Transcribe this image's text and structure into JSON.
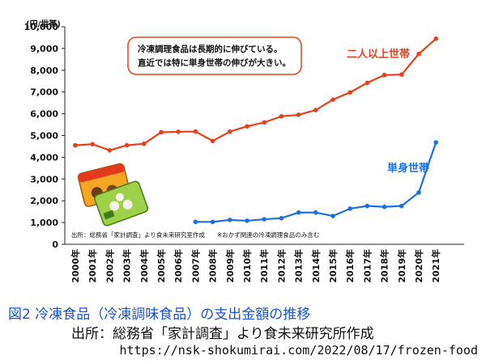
{
  "chart_data": {
    "type": "line",
    "unit_label": "(円/世帯)",
    "categories": [
      "2000年",
      "2001年",
      "2002年",
      "2003年",
      "2004年",
      "2005年",
      "2006年",
      "2007年",
      "2008年",
      "2009年",
      "2010年",
      "2011年",
      "2012年",
      "2013年",
      "2014年",
      "2015年",
      "2016年",
      "2017年",
      "2018年",
      "2019年",
      "2020年",
      "2021年"
    ],
    "series": [
      {
        "name": "二人以上世帯",
        "color": "#e8401c",
        "values": [
          4550,
          4600,
          4320,
          4550,
          4620,
          5150,
          5170,
          5180,
          4750,
          5180,
          5420,
          5600,
          5880,
          5950,
          6170,
          6650,
          6980,
          7420,
          7780,
          7800,
          8750,
          9450
        ]
      },
      {
        "name": "単身世帯",
        "color": "#1e6fe0",
        "values": [
          null,
          null,
          null,
          null,
          null,
          null,
          null,
          1030,
          1030,
          1120,
          1080,
          1150,
          1200,
          1460,
          1460,
          1300,
          1640,
          1760,
          1720,
          1760,
          2380,
          4680
        ]
      }
    ],
    "y_ticks": [
      "0",
      "1,000",
      "2,000",
      "3,000",
      "4,000",
      "5,000",
      "6,000",
      "7,000",
      "8,000",
      "9,000",
      "10,000"
    ],
    "ylim": [
      0,
      10000
    ],
    "grid": false,
    "annotation_lines": [
      "冷凍調理食品は長期的に伸びている。",
      "直近では特に単身世帯の伸びが大きい。"
    ],
    "source_note": "出所：総務省「家計調査」より食未来研究室作成",
    "scope_note": "※おかず関連の冷凍調理食品のみ含む"
  },
  "caption": "図2 冷凍食品（冷凍調味食品）の支出金額の推移",
  "source": "出所：総務省「家計調査」より食未来研究所作成",
  "url": "https://nsk-shokumirai.com/2022/08/17/frozen-food"
}
